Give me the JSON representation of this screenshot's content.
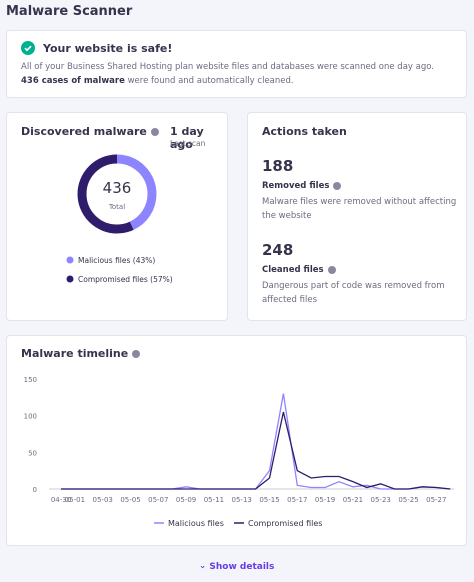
{
  "header": {
    "title": "Malware Scanner"
  },
  "alert": {
    "title": "Your website is safe!",
    "text_before": "All of your Business Shared Hosting plan website files and databases were scanned one day ago.",
    "text_bold": "436 cases of malware",
    "text_after": "were found and automatically cleaned."
  },
  "discovered": {
    "title": "Discovered malware",
    "last_scan_value": "1 day ago",
    "last_scan_label": "Last scan",
    "total": 436,
    "total_label": "Total",
    "segments": [
      {
        "name": "Malicious files (43%)",
        "value": 43,
        "color": "#8c85ff"
      },
      {
        "name": "Compromised files (57%)",
        "value": 57,
        "color": "#2f1c6a"
      }
    ]
  },
  "actions": {
    "title": "Actions taken",
    "items": [
      {
        "value": 188,
        "label": "Removed files",
        "description": "Malware files were removed without affecting the website"
      },
      {
        "value": 248,
        "label": "Cleaned files",
        "description": "Dangerous part of code was removed from affected files"
      }
    ]
  },
  "timeline": {
    "title": "Malware timeline",
    "chart": {
      "type": "line",
      "categories": [
        "04-30",
        "05-01",
        null,
        "05-03",
        null,
        "05-05",
        null,
        "05-07",
        null,
        "05-09",
        null,
        "05-11",
        null,
        "05-13",
        null,
        "05-15",
        null,
        "05-17",
        null,
        "05-19",
        null,
        "05-21",
        null,
        "05-23",
        null,
        "05-25",
        null,
        "05-27",
        null
      ],
      "series": [
        {
          "name": "Malicious files",
          "color": "#8c85ff",
          "values": [
            0,
            0,
            0,
            0,
            0,
            0,
            0,
            0,
            0,
            3,
            0,
            0,
            0,
            0,
            0,
            25,
            130,
            5,
            2,
            2,
            10,
            3,
            5,
            0,
            0,
            0,
            3,
            2,
            0
          ]
        },
        {
          "name": "Compromised files",
          "color": "#2f1c6a",
          "values": [
            0,
            0,
            0,
            0,
            0,
            0,
            0,
            0,
            0,
            0,
            0,
            0,
            0,
            0,
            0,
            15,
            105,
            25,
            15,
            17,
            17,
            10,
            2,
            7,
            0,
            0,
            3,
            2,
            0
          ]
        }
      ],
      "ylim": [
        0,
        150
      ],
      "yticks": [
        0,
        50,
        100,
        150
      ],
      "grid": false
    }
  },
  "footer": {
    "button": "Show details"
  }
}
